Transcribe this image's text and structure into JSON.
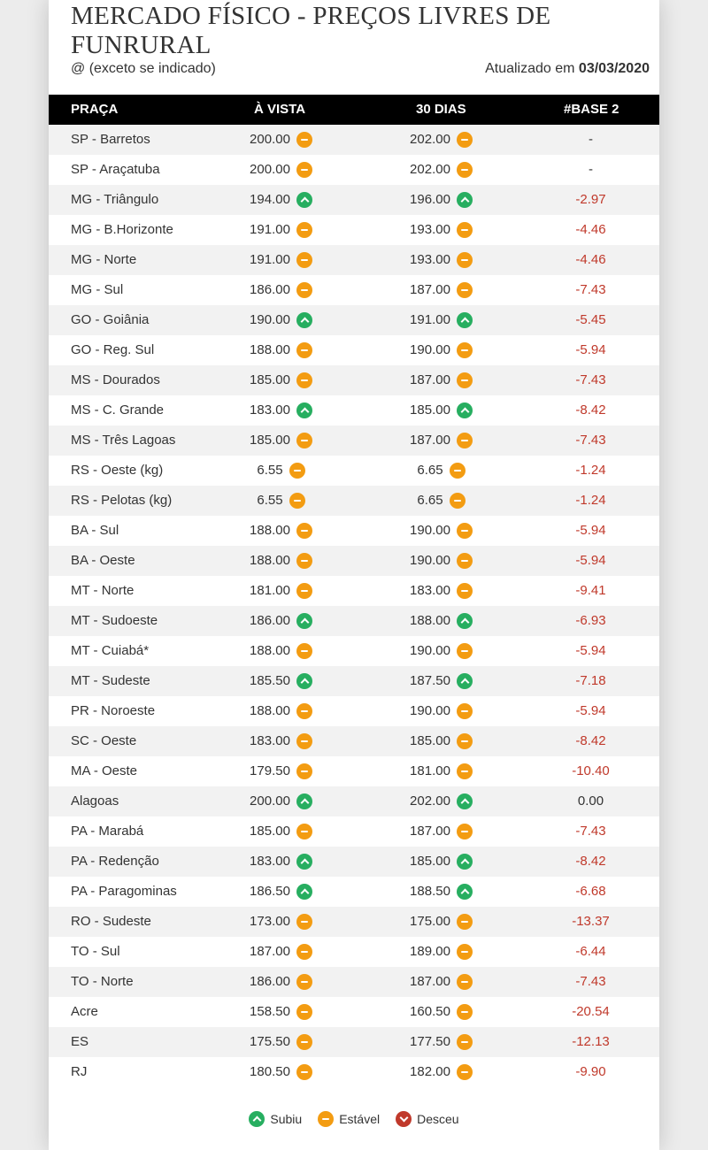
{
  "header": {
    "title": "MERCADO FÍSICO - PREÇOS LIVRES DE FUNRURAL",
    "subtitle": "@ (exceto se indicado)",
    "updated_label": "Atualizado em",
    "updated_date": "03/03/2020"
  },
  "table": {
    "columns": [
      "PRAÇA",
      "À VISTA",
      "30 DIAS",
      "#BASE 2"
    ],
    "rows": [
      {
        "praca": "SP - Barretos",
        "vista": "200.00",
        "vista_icon": "estavel",
        "dias": "202.00",
        "dias_icon": "estavel",
        "base": "-"
      },
      {
        "praca": "SP - Araçatuba",
        "vista": "200.00",
        "vista_icon": "estavel",
        "dias": "202.00",
        "dias_icon": "estavel",
        "base": "-"
      },
      {
        "praca": "MG - Triângulo",
        "vista": "194.00",
        "vista_icon": "subiu",
        "dias": "196.00",
        "dias_icon": "subiu",
        "base": "-2.97"
      },
      {
        "praca": "MG - B.Horizonte",
        "vista": "191.00",
        "vista_icon": "estavel",
        "dias": "193.00",
        "dias_icon": "estavel",
        "base": "-4.46"
      },
      {
        "praca": "MG - Norte",
        "vista": "191.00",
        "vista_icon": "estavel",
        "dias": "193.00",
        "dias_icon": "estavel",
        "base": "-4.46"
      },
      {
        "praca": "MG - Sul",
        "vista": "186.00",
        "vista_icon": "estavel",
        "dias": "187.00",
        "dias_icon": "estavel",
        "base": "-7.43"
      },
      {
        "praca": "GO - Goiânia",
        "vista": "190.00",
        "vista_icon": "subiu",
        "dias": "191.00",
        "dias_icon": "subiu",
        "base": "-5.45"
      },
      {
        "praca": "GO - Reg. Sul",
        "vista": "188.00",
        "vista_icon": "estavel",
        "dias": "190.00",
        "dias_icon": "estavel",
        "base": "-5.94"
      },
      {
        "praca": "MS - Dourados",
        "vista": "185.00",
        "vista_icon": "estavel",
        "dias": "187.00",
        "dias_icon": "estavel",
        "base": "-7.43"
      },
      {
        "praca": "MS - C. Grande",
        "vista": "183.00",
        "vista_icon": "subiu",
        "dias": "185.00",
        "dias_icon": "subiu",
        "base": "-8.42"
      },
      {
        "praca": "MS - Três Lagoas",
        "vista": "185.00",
        "vista_icon": "estavel",
        "dias": "187.00",
        "dias_icon": "estavel",
        "base": "-7.43"
      },
      {
        "praca": "RS - Oeste (kg)",
        "vista": "6.55",
        "vista_icon": "estavel",
        "dias": "6.65",
        "dias_icon": "estavel",
        "base": "-1.24"
      },
      {
        "praca": "RS - Pelotas (kg)",
        "vista": "6.55",
        "vista_icon": "estavel",
        "dias": "6.65",
        "dias_icon": "estavel",
        "base": "-1.24"
      },
      {
        "praca": "BA - Sul",
        "vista": "188.00",
        "vista_icon": "estavel",
        "dias": "190.00",
        "dias_icon": "estavel",
        "base": "-5.94"
      },
      {
        "praca": "BA - Oeste",
        "vista": "188.00",
        "vista_icon": "estavel",
        "dias": "190.00",
        "dias_icon": "estavel",
        "base": "-5.94"
      },
      {
        "praca": "MT - Norte",
        "vista": "181.00",
        "vista_icon": "estavel",
        "dias": "183.00",
        "dias_icon": "estavel",
        "base": "-9.41"
      },
      {
        "praca": "MT - Sudoeste",
        "vista": "186.00",
        "vista_icon": "subiu",
        "dias": "188.00",
        "dias_icon": "subiu",
        "base": "-6.93"
      },
      {
        "praca": "MT - Cuiabá*",
        "vista": "188.00",
        "vista_icon": "estavel",
        "dias": "190.00",
        "dias_icon": "estavel",
        "base": "-5.94"
      },
      {
        "praca": "MT - Sudeste",
        "vista": "185.50",
        "vista_icon": "subiu",
        "dias": "187.50",
        "dias_icon": "subiu",
        "base": "-7.18"
      },
      {
        "praca": "PR - Noroeste",
        "vista": "188.00",
        "vista_icon": "estavel",
        "dias": "190.00",
        "dias_icon": "estavel",
        "base": "-5.94"
      },
      {
        "praca": "SC - Oeste",
        "vista": "183.00",
        "vista_icon": "estavel",
        "dias": "185.00",
        "dias_icon": "estavel",
        "base": "-8.42"
      },
      {
        "praca": "MA - Oeste",
        "vista": "179.50",
        "vista_icon": "estavel",
        "dias": "181.00",
        "dias_icon": "estavel",
        "base": "-10.40"
      },
      {
        "praca": "Alagoas",
        "vista": "200.00",
        "vista_icon": "subiu",
        "dias": "202.00",
        "dias_icon": "subiu",
        "base": "0.00"
      },
      {
        "praca": "PA - Marabá",
        "vista": "185.00",
        "vista_icon": "estavel",
        "dias": "187.00",
        "dias_icon": "estavel",
        "base": "-7.43"
      },
      {
        "praca": "PA - Redenção",
        "vista": "183.00",
        "vista_icon": "subiu",
        "dias": "185.00",
        "dias_icon": "subiu",
        "base": "-8.42"
      },
      {
        "praca": "PA - Paragominas",
        "vista": "186.50",
        "vista_icon": "subiu",
        "dias": "188.50",
        "dias_icon": "subiu",
        "base": "-6.68"
      },
      {
        "praca": "RO - Sudeste",
        "vista": "173.00",
        "vista_icon": "estavel",
        "dias": "175.00",
        "dias_icon": "estavel",
        "base": "-13.37"
      },
      {
        "praca": "TO - Sul",
        "vista": "187.00",
        "vista_icon": "estavel",
        "dias": "189.00",
        "dias_icon": "estavel",
        "base": "-6.44"
      },
      {
        "praca": "TO - Norte",
        "vista": "186.00",
        "vista_icon": "estavel",
        "dias": "187.00",
        "dias_icon": "estavel",
        "base": "-7.43"
      },
      {
        "praca": "Acre",
        "vista": "158.50",
        "vista_icon": "estavel",
        "dias": "160.50",
        "dias_icon": "estavel",
        "base": "-20.54"
      },
      {
        "praca": "ES",
        "vista": "175.50",
        "vista_icon": "estavel",
        "dias": "177.50",
        "dias_icon": "estavel",
        "base": "-12.13"
      },
      {
        "praca": "RJ",
        "vista": "180.50",
        "vista_icon": "estavel",
        "dias": "182.00",
        "dias_icon": "estavel",
        "base": "-9.90"
      }
    ]
  },
  "legend": {
    "subiu": "Subiu",
    "estavel": "Estável",
    "desceu": "Desceu"
  },
  "colors": {
    "subiu": "#27ae60",
    "estavel": "#f39c12",
    "desceu": "#c0392b",
    "negative_text": "#c0392b",
    "header_bg": "#000000"
  }
}
